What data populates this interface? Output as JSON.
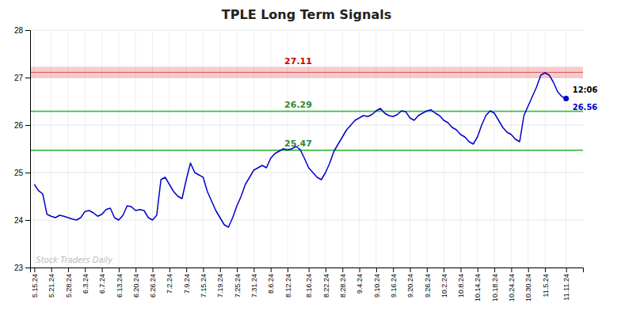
{
  "chart_data": {
    "type": "line",
    "title": "TPLE Long Term Signals",
    "color": "#0000cc",
    "grid": true,
    "ylim": [
      23,
      28
    ],
    "yticks": [
      23,
      24,
      25,
      26,
      27,
      28
    ],
    "categories": [
      "5.15.24",
      null,
      null,
      null,
      "5.21.24",
      null,
      null,
      null,
      "5.28.24",
      null,
      null,
      null,
      "6.3.24",
      null,
      null,
      null,
      "6.7.24",
      null,
      null,
      null,
      "6.13.24",
      null,
      null,
      null,
      "6.20.24",
      null,
      null,
      null,
      "6.26.24",
      null,
      null,
      null,
      "7.2.24",
      null,
      null,
      null,
      "7.9.24",
      null,
      null,
      null,
      "7.15.24",
      null,
      null,
      null,
      "7.19.24",
      null,
      null,
      null,
      "7.25.24",
      null,
      null,
      null,
      "7.31.24",
      null,
      null,
      null,
      "8.6.24",
      null,
      null,
      null,
      "8.12.24",
      null,
      null,
      null,
      null,
      "8.16.24",
      null,
      null,
      null,
      "8.22.24",
      null,
      null,
      null,
      "8.28.24",
      null,
      null,
      null,
      "9.4.24",
      null,
      null,
      null,
      "9.10.24",
      null,
      null,
      null,
      "9.16.24",
      null,
      null,
      null,
      "9.20.24",
      null,
      null,
      null,
      "9.26.24",
      null,
      null,
      null,
      "10.2.24",
      null,
      null,
      null,
      "10.8.24",
      null,
      null,
      null,
      "10.14.24",
      null,
      null,
      null,
      "10.18.24",
      null,
      null,
      null,
      "10.24.24",
      null,
      null,
      null,
      "10.30.24",
      null,
      null,
      null,
      "11.5.24",
      null,
      null,
      null,
      null,
      "11.11.24"
    ],
    "values": [
      24.75,
      24.62,
      24.55,
      24.12,
      24.08,
      24.05,
      24.1,
      24.08,
      24.05,
      24.02,
      24.0,
      24.05,
      24.18,
      24.2,
      24.15,
      24.08,
      24.12,
      24.22,
      24.25,
      24.05,
      24.0,
      24.1,
      24.3,
      24.28,
      24.2,
      24.22,
      24.2,
      24.05,
      24.0,
      24.1,
      24.85,
      24.9,
      24.75,
      24.6,
      24.5,
      24.45,
      24.85,
      25.2,
      25.0,
      24.95,
      24.9,
      24.6,
      24.4,
      24.2,
      24.05,
      23.9,
      23.85,
      24.05,
      24.3,
      24.5,
      24.75,
      24.9,
      25.05,
      25.1,
      25.15,
      25.1,
      25.3,
      25.4,
      25.45,
      25.5,
      25.48,
      25.5,
      25.55,
      25.48,
      25.3,
      25.1,
      25.0,
      24.9,
      24.85,
      25.0,
      25.2,
      25.45,
      25.6,
      25.75,
      25.9,
      26.0,
      26.1,
      26.15,
      26.2,
      26.18,
      26.22,
      26.3,
      26.35,
      26.25,
      26.2,
      26.18,
      26.22,
      26.3,
      26.28,
      26.15,
      26.1,
      26.2,
      26.25,
      26.3,
      26.32,
      26.25,
      26.2,
      26.1,
      26.05,
      25.95,
      25.9,
      25.8,
      25.75,
      25.65,
      25.6,
      25.75,
      26.0,
      26.2,
      26.3,
      26.25,
      26.1,
      25.95,
      25.85,
      25.8,
      25.7,
      25.65,
      26.2,
      26.4,
      26.6,
      26.8,
      27.05,
      27.1,
      27.05,
      26.9,
      26.7,
      26.6,
      26.56
    ],
    "reference_lines": [
      {
        "value": 27.11,
        "color": "#cc0000",
        "line_style": "band"
      },
      {
        "value": 26.29,
        "color": "#44bb44",
        "line_style": "solid"
      },
      {
        "value": 25.47,
        "color": "#44bb44",
        "line_style": "solid"
      }
    ],
    "last_price": {
      "value": 26.56,
      "time": "12:06",
      "color": "#0000cc"
    },
    "watermark": "Stock Traders Daily"
  }
}
